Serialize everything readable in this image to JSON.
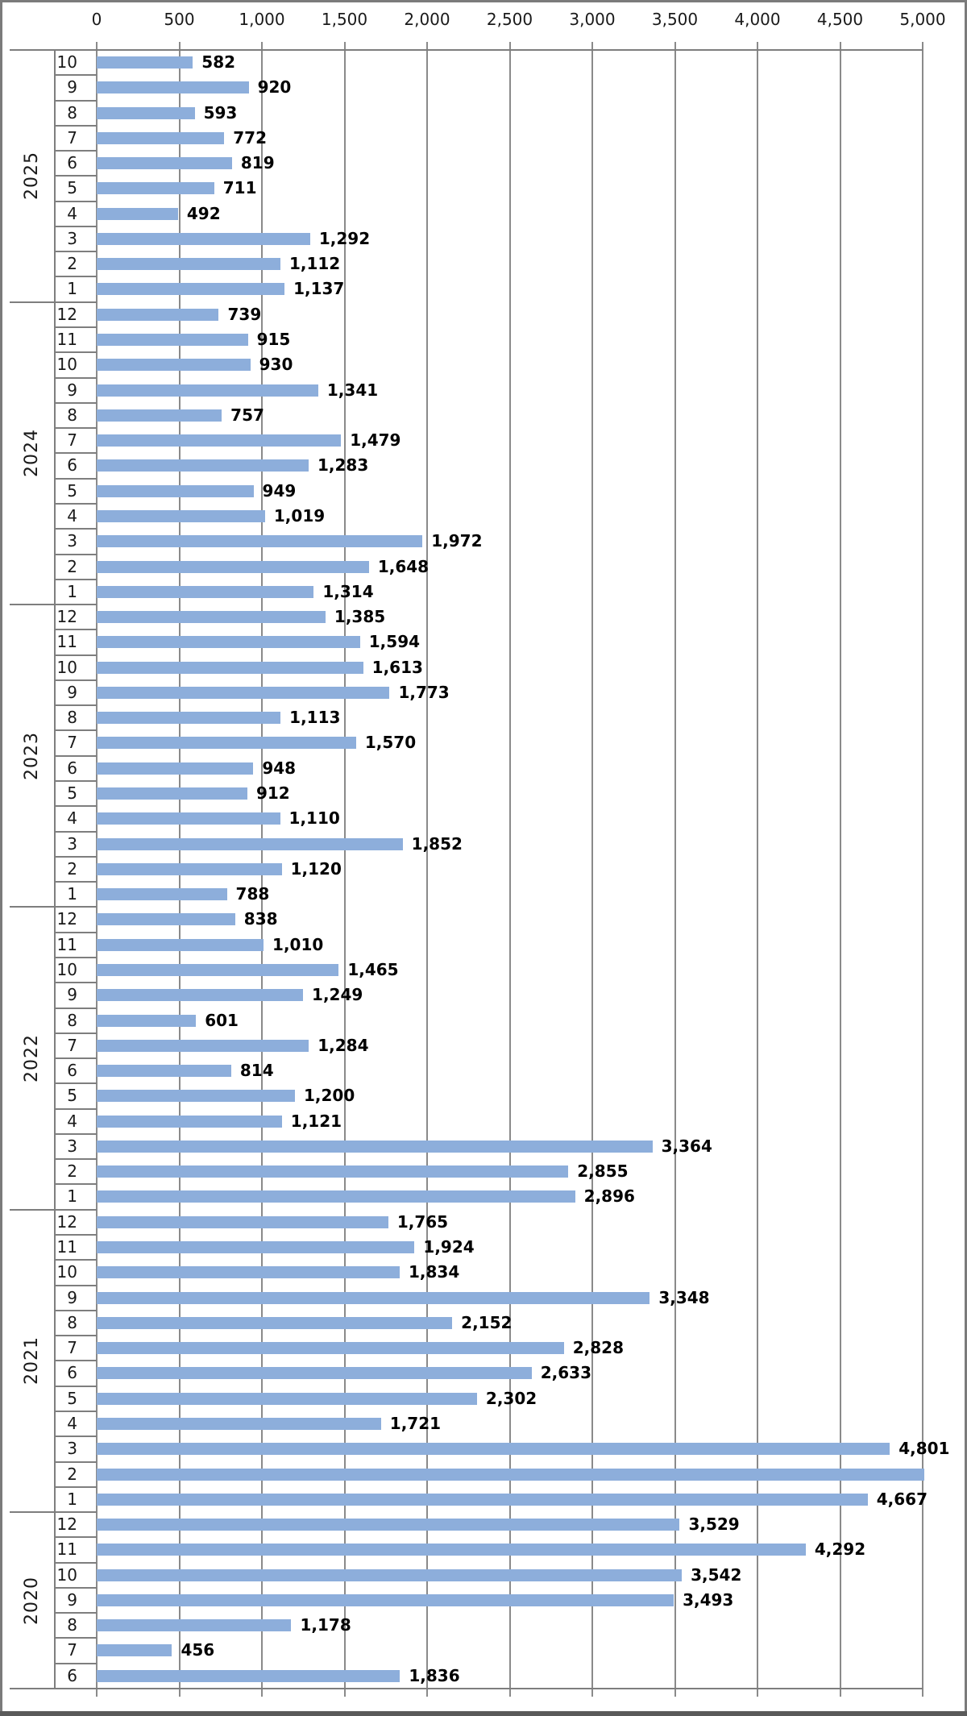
{
  "chart_data": {
    "type": "bar",
    "orientation": "horizontal",
    "title": "",
    "xlabel": "",
    "ylabel": "",
    "grid": true,
    "legend": false,
    "bar_color": "#8daedb",
    "grid_color": "#8a8a8a",
    "axis_line_color": "#7e7e7e",
    "x_axis": {
      "position": "top",
      "min": 0,
      "max": 5000,
      "tick_interval": 500,
      "tick_labels": [
        "0",
        "500",
        "1,000",
        "1,500",
        "2,000",
        "2,500",
        "3,000",
        "3,500",
        "4,000",
        "4,500",
        "5,000"
      ]
    },
    "y_axis": {
      "levels": [
        "year",
        "month"
      ],
      "order": "newest-first, months descending"
    },
    "groups": [
      {
        "year": "2025",
        "entries": [
          {
            "month": "10",
            "value": 582,
            "label": "582"
          },
          {
            "month": "9",
            "value": 920,
            "label": "920"
          },
          {
            "month": "8",
            "value": 593,
            "label": "593"
          },
          {
            "month": "7",
            "value": 772,
            "label": "772"
          },
          {
            "month": "6",
            "value": 819,
            "label": "819"
          },
          {
            "month": "5",
            "value": 711,
            "label": "711"
          },
          {
            "month": "4",
            "value": 492,
            "label": "492"
          },
          {
            "month": "3",
            "value": 1292,
            "label": "1,292"
          },
          {
            "month": "2",
            "value": 1112,
            "label": "1,112"
          },
          {
            "month": "1",
            "value": 1137,
            "label": "1,137"
          }
        ]
      },
      {
        "year": "2024",
        "entries": [
          {
            "month": "12",
            "value": 739,
            "label": "739"
          },
          {
            "month": "11",
            "value": 915,
            "label": "915"
          },
          {
            "month": "10",
            "value": 930,
            "label": "930"
          },
          {
            "month": "9",
            "value": 1341,
            "label": "1,341"
          },
          {
            "month": "8",
            "value": 757,
            "label": "757"
          },
          {
            "month": "7",
            "value": 1479,
            "label": "1,479"
          },
          {
            "month": "6",
            "value": 1283,
            "label": "1,283"
          },
          {
            "month": "5",
            "value": 949,
            "label": "949"
          },
          {
            "month": "4",
            "value": 1019,
            "label": "1,019"
          },
          {
            "month": "3",
            "value": 1972,
            "label": "1,972"
          },
          {
            "month": "2",
            "value": 1648,
            "label": "1,648"
          },
          {
            "month": "1",
            "value": 1314,
            "label": "1,314"
          }
        ]
      },
      {
        "year": "2023",
        "entries": [
          {
            "month": "12",
            "value": 1385,
            "label": "1,385"
          },
          {
            "month": "11",
            "value": 1594,
            "label": "1,594"
          },
          {
            "month": "10",
            "value": 1613,
            "label": "1,613"
          },
          {
            "month": "9",
            "value": 1773,
            "label": "1,773"
          },
          {
            "month": "8",
            "value": 1113,
            "label": "1,113"
          },
          {
            "month": "7",
            "value": 1570,
            "label": "1,570"
          },
          {
            "month": "6",
            "value": 948,
            "label": "948"
          },
          {
            "month": "5",
            "value": 912,
            "label": "912"
          },
          {
            "month": "4",
            "value": 1110,
            "label": "1,110"
          },
          {
            "month": "3",
            "value": 1852,
            "label": "1,852"
          },
          {
            "month": "2",
            "value": 1120,
            "label": "1,120"
          },
          {
            "month": "1",
            "value": 788,
            "label": "788"
          }
        ]
      },
      {
        "year": "2022",
        "entries": [
          {
            "month": "12",
            "value": 838,
            "label": "838"
          },
          {
            "month": "11",
            "value": 1010,
            "label": "1,010"
          },
          {
            "month": "10",
            "value": 1465,
            "label": "1,465"
          },
          {
            "month": "9",
            "value": 1249,
            "label": "1,249"
          },
          {
            "month": "8",
            "value": 601,
            "label": "601"
          },
          {
            "month": "7",
            "value": 1284,
            "label": "1,284"
          },
          {
            "month": "6",
            "value": 814,
            "label": "814"
          },
          {
            "month": "5",
            "value": 1200,
            "label": "1,200"
          },
          {
            "month": "4",
            "value": 1121,
            "label": "1,121"
          },
          {
            "month": "3",
            "value": 3364,
            "label": "3,364"
          },
          {
            "month": "2",
            "value": 2855,
            "label": "2,855"
          },
          {
            "month": "1",
            "value": 2896,
            "label": "2,896"
          }
        ]
      },
      {
        "year": "2021",
        "entries": [
          {
            "month": "12",
            "value": 1765,
            "label": "1,765"
          },
          {
            "month": "11",
            "value": 1924,
            "label": "1,924"
          },
          {
            "month": "10",
            "value": 1834,
            "label": "1,834"
          },
          {
            "month": "9",
            "value": 3348,
            "label": "3,348"
          },
          {
            "month": "8",
            "value": 2152,
            "label": "2,152"
          },
          {
            "month": "7",
            "value": 2828,
            "label": "2,828"
          },
          {
            "month": "6",
            "value": 2633,
            "label": "2,633"
          },
          {
            "month": "5",
            "value": 2302,
            "label": "2,302"
          },
          {
            "month": "4",
            "value": 1721,
            "label": "1,721"
          },
          {
            "month": "3",
            "value": 4801,
            "label": "4,801"
          },
          {
            "month": "2",
            "value": 5010,
            "label": ""
          },
          {
            "month": "1",
            "value": 4667,
            "label": "4,667"
          }
        ]
      },
      {
        "year": "2020",
        "entries": [
          {
            "month": "12",
            "value": 3529,
            "label": "3,529"
          },
          {
            "month": "11",
            "value": 4292,
            "label": "4,292"
          },
          {
            "month": "10",
            "value": 3542,
            "label": "3,542"
          },
          {
            "month": "9",
            "value": 3493,
            "label": "3,493"
          },
          {
            "month": "8",
            "value": 1178,
            "label": "1,178"
          },
          {
            "month": "7",
            "value": 456,
            "label": "456"
          },
          {
            "month": "6",
            "value": 1836,
            "label": "1,836"
          }
        ]
      }
    ]
  }
}
